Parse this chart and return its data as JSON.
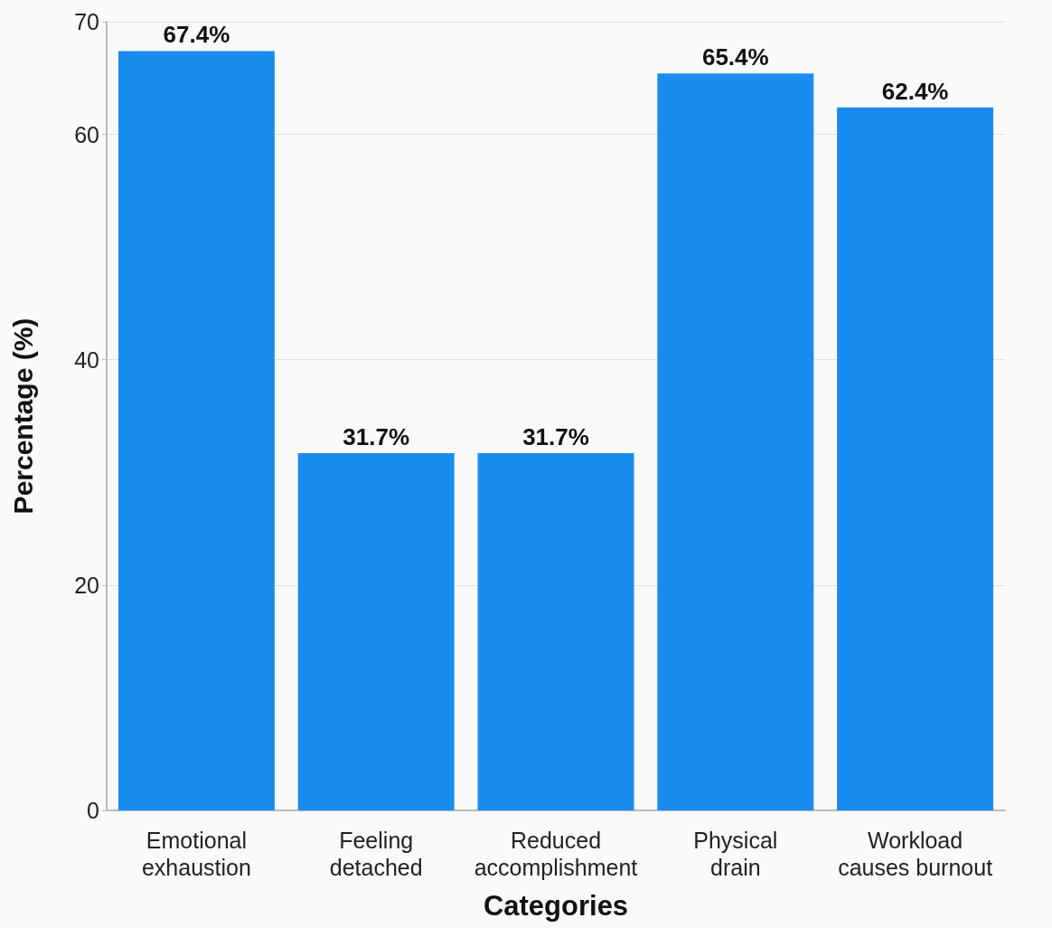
{
  "chart_data": {
    "type": "bar",
    "xlabel": "Categories",
    "ylabel": "Percentage (%)",
    "categories": [
      "Emotional\nexhaustion",
      "Feeling\ndetached",
      "Reduced\naccomplishment",
      "Physical\ndrain",
      "Workload\ncauses burnout"
    ],
    "values": [
      67.4,
      31.7,
      31.7,
      65.4,
      62.4
    ],
    "value_labels": [
      "67.4%",
      "31.7%",
      "31.7%",
      "65.4%",
      "62.4%"
    ],
    "color": "#1a8cf0",
    "ylim": [
      0,
      70
    ],
    "yticks": [
      0,
      20,
      40,
      60,
      70
    ],
    "grid": "y"
  }
}
